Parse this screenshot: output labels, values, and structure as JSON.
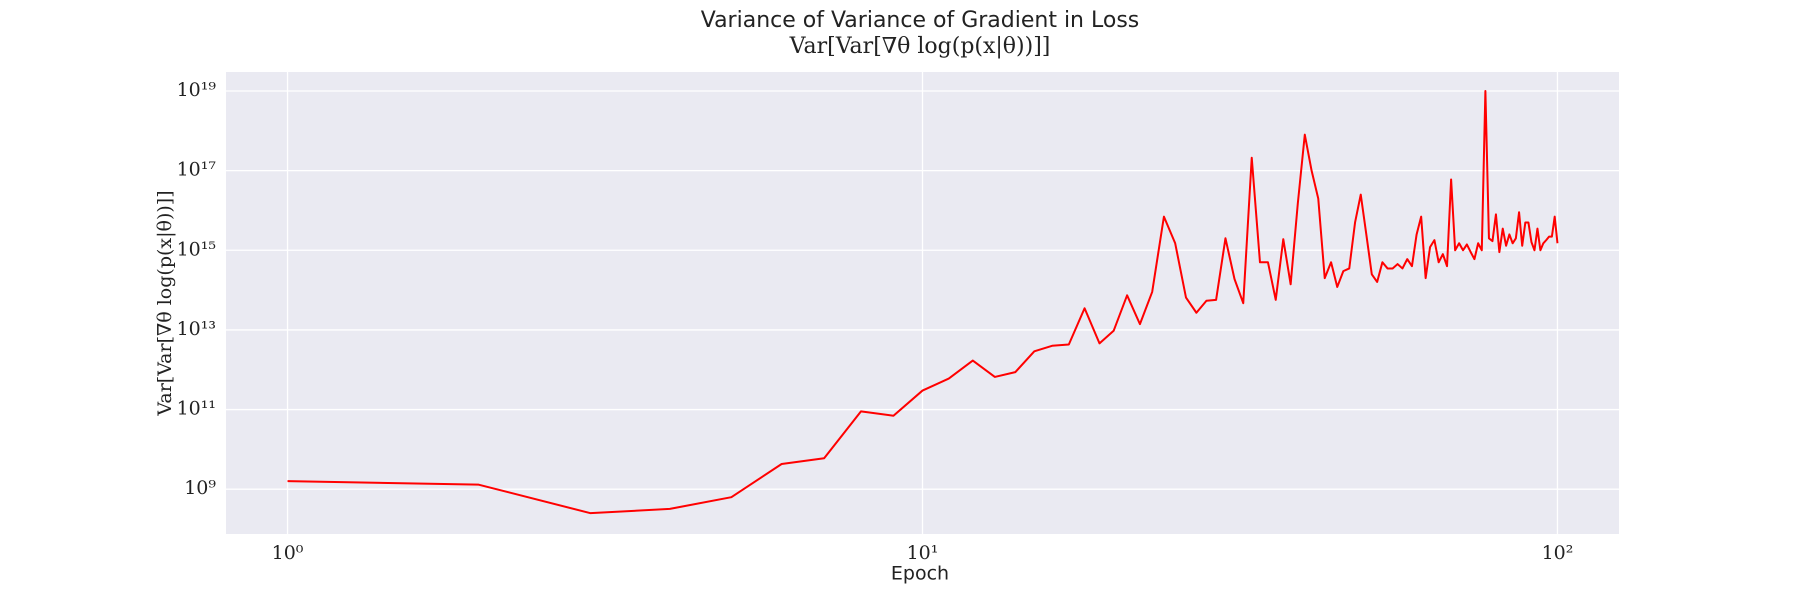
{
  "chart_data": {
    "type": "line",
    "title": "Variance of Variance of Gradient in Loss",
    "subtitle": "Var[Var[∇θ log(p(x|θ))]]",
    "x_label": "Epoch",
    "y_label": "Var[Var[∇θ log(p(x|θ))]]",
    "color": "#ff0000",
    "background": "#eaeaf2",
    "grid": true,
    "x_scale": "log",
    "y_scale": "log",
    "xlim": [
      0.8,
      125
    ],
    "ylim": [
      75000000,
      30000000000000000000
    ],
    "xticks": [
      {
        "value": 1,
        "label": "10⁰"
      },
      {
        "value": 10,
        "label": "10¹"
      },
      {
        "value": 100,
        "label": "10²"
      }
    ],
    "yticks": [
      {
        "value": 1000000000,
        "label": "10⁹"
      },
      {
        "value": 100000000000,
        "label": "10¹¹"
      },
      {
        "value": 10000000000000,
        "label": "10¹³"
      },
      {
        "value": 1000000000000000,
        "label": "10¹⁵"
      },
      {
        "value": 100000000000000000,
        "label": "10¹⁷"
      },
      {
        "value": 10000000000000000000,
        "label": "10¹⁹"
      }
    ],
    "x": [
      1,
      2,
      3,
      4,
      5,
      6,
      7,
      8,
      9,
      10,
      11,
      12,
      13,
      14,
      15,
      16,
      17,
      18,
      19,
      20,
      21,
      22,
      23,
      24,
      25,
      26,
      27,
      28,
      29,
      30,
      31,
      32,
      33,
      34,
      35,
      36,
      37,
      38,
      39,
      40,
      41,
      42,
      43,
      44,
      45,
      46,
      47,
      48,
      49,
      50,
      51,
      52,
      53,
      54,
      55,
      56,
      57,
      58,
      59,
      60,
      61,
      62,
      63,
      64,
      65,
      66,
      67,
      68,
      69,
      70,
      71,
      72,
      73,
      74,
      75,
      76,
      77,
      78,
      79,
      80,
      81,
      82,
      83,
      84,
      85,
      86,
      87,
      88,
      89,
      90,
      91,
      92,
      93,
      94,
      95,
      96,
      97,
      98,
      99,
      100
    ],
    "values": [
      1600000000.0,
      1300000000.0,
      250000000.0,
      320000000.0,
      630000000.0,
      4300000000.0,
      6000000000.0,
      90000000000.0,
      70000000000.0,
      300000000000.0,
      600000000000.0,
      1700000000000.0,
      660000000000.0,
      870000000000.0,
      2900000000000.0,
      4000000000000.0,
      4300000000000.0,
      35000000000000.0,
      4600000000000.0,
      9500000000000.0,
      74000000000000.0,
      14000000000000.0,
      90000000000000.0,
      7000000000000000.0,
      1500000000000000.0,
      65000000000000.0,
      27000000000000.0,
      54000000000000.0,
      57000000000000.0,
      2000000000000000.0,
      190000000000000.0,
      47000000000000.0,
      2.1e+17,
      500000000000000.0,
      500000000000000.0,
      57000000000000.0,
      1900000000000000.0,
      140000000000000.0,
      1.5e+16,
      8e+17,
      1e+17,
      2e+16,
      200000000000000.0,
      500000000000000.0,
      120000000000000.0,
      300000000000000.0,
      350000000000000.0,
      5000000000000000.0,
      2.5e+16,
      2500000000000000.0,
      250000000000000.0,
      160000000000000.0,
      500000000000000.0,
      350000000000000.0,
      350000000000000.0,
      450000000000000.0,
      350000000000000.0,
      600000000000000.0,
      400000000000000.0,
      2500000000000000.0,
      7000000000000000.0,
      200000000000000.0,
      1200000000000000.0,
      1800000000000000.0,
      500000000000000.0,
      800000000000000.0,
      400000000000000.0,
      6e+16,
      1000000000000000.0,
      1500000000000000.0,
      1000000000000000.0,
      1400000000000000.0,
      900000000000000.0,
      600000000000000.0,
      1500000000000000.0,
      1000000000000000.0,
      1e+19,
      2000000000000000.0,
      1700000000000000.0,
      8000000000000000.0,
      900000000000000.0,
      3500000000000000.0,
      1300000000000000.0,
      2500000000000000.0,
      1500000000000000.0,
      2000000000000000.0,
      9000000000000000.0,
      1300000000000000.0,
      5000000000000000.0,
      5000000000000000.0,
      1600000000000000.0,
      1000000000000000.0,
      3500000000000000.0,
      1000000000000000.0,
      1500000000000000.0,
      1800000000000000.0,
      2200000000000000.0,
      2200000000000000.0,
      7000000000000000.0,
      1500000000000000.0
    ]
  }
}
